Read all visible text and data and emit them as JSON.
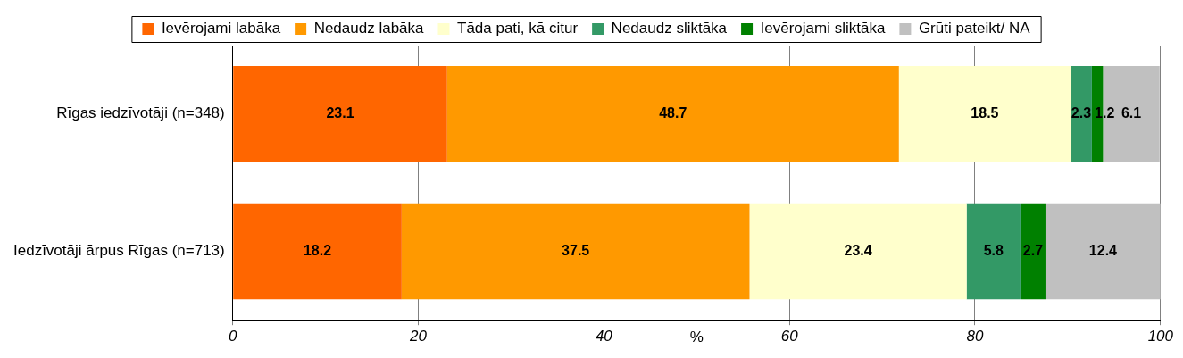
{
  "chart_data": {
    "type": "bar",
    "orientation": "horizontal",
    "stacked": true,
    "categories": [
      "Rīgas iedzīvotāji (n=348)",
      "Iedzīvotāji ārpus Rīgas (n=713)"
    ],
    "series": [
      {
        "name": "Ievērojami labāka",
        "color": "#ff6600",
        "values": [
          23.1,
          18.2
        ]
      },
      {
        "name": "Nedaudz labāka",
        "color": "#ff9900",
        "values": [
          48.7,
          37.5
        ]
      },
      {
        "name": "Tāda pati, kā citur",
        "color": "#ffffcc",
        "values": [
          18.5,
          23.4
        ]
      },
      {
        "name": "Nedaudz sliktāka",
        "color": "#339966",
        "values": [
          2.3,
          5.8
        ]
      },
      {
        "name": "Ievērojami sliktāka",
        "color": "#008000",
        "values": [
          1.2,
          2.7
        ]
      },
      {
        "name": "Grūti pateikt/ NA",
        "color": "#c0c0c0",
        "values": [
          6.1,
          12.4
        ]
      }
    ],
    "xlim": [
      0,
      100
    ],
    "xticks": [
      0,
      20,
      40,
      60,
      80,
      100
    ],
    "xlabel": "%",
    "grid": "x",
    "legend": "top",
    "data_labels": true
  }
}
